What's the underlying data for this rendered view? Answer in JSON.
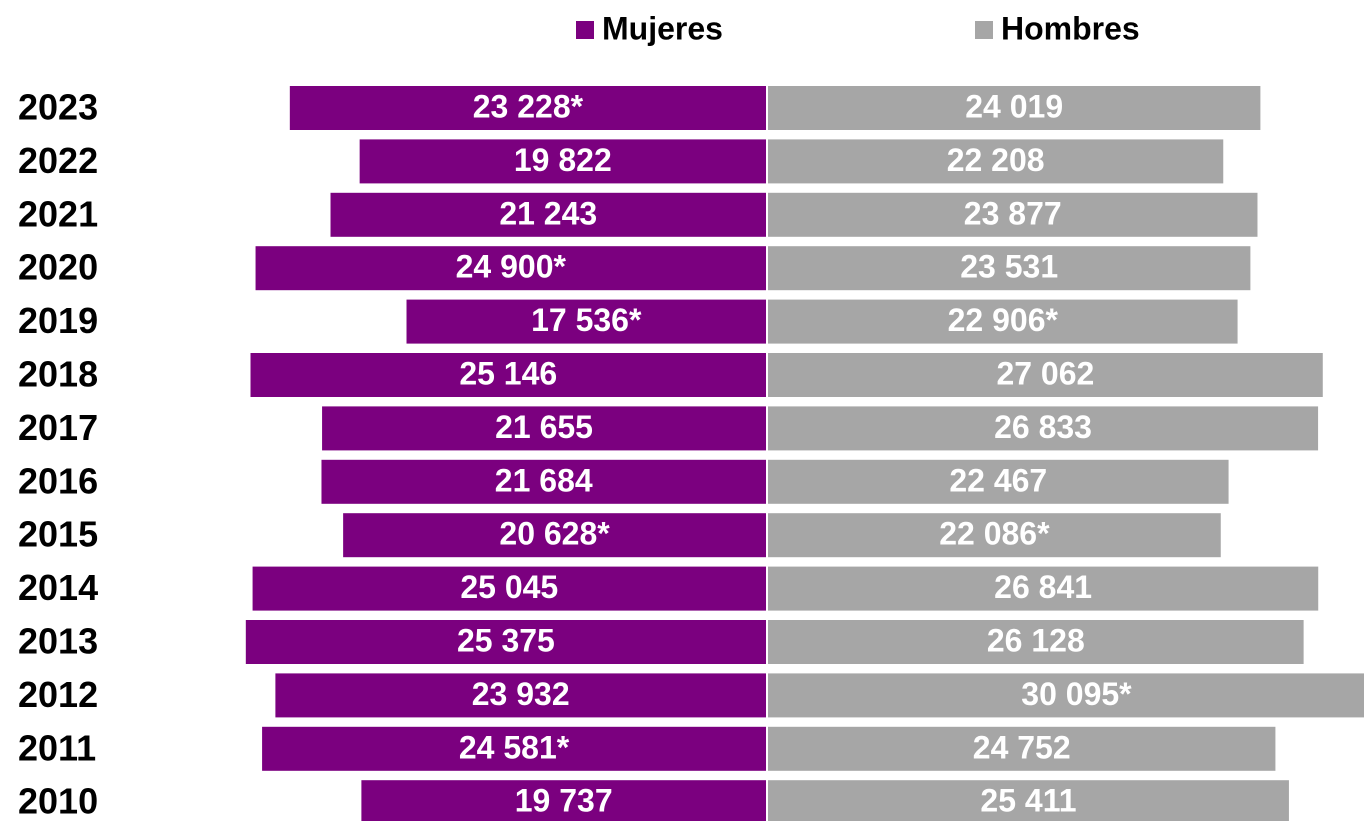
{
  "chart_data": {
    "type": "bar",
    "categories": [
      "2023",
      "2022",
      "2021",
      "2020",
      "2019",
      "2018",
      "2017",
      "2016",
      "2015",
      "2014",
      "2013",
      "2012",
      "2011",
      "2010"
    ],
    "series": [
      {
        "name": "Mujeres",
        "color": "#7b007f",
        "values": [
          23228,
          19822,
          21243,
          24900,
          17536,
          25146,
          21655,
          21684,
          20628,
          25045,
          25375,
          23932,
          24581,
          19737
        ],
        "value_labels": [
          "23 228*",
          "19 822",
          "21 243",
          "24 900*",
          "17 536*",
          "25 146",
          "21 655",
          "21 684",
          "20 628*",
          "25 045",
          "25 375",
          "23 932",
          "24 581*",
          "19 737"
        ]
      },
      {
        "name": "Hombres",
        "color": "#a6a6a6",
        "values": [
          24019,
          22208,
          23877,
          23531,
          22906,
          27062,
          26833,
          22467,
          22086,
          26841,
          26128,
          30095,
          24752,
          25411
        ],
        "value_labels": [
          "24 019",
          "22 208",
          "23 877",
          "23 531",
          "22 906*",
          "27 062",
          "26 833",
          "22 467",
          "22 086*",
          "26 841",
          "26 128",
          "30 095*",
          "24 752",
          "25 411"
        ]
      }
    ]
  }
}
